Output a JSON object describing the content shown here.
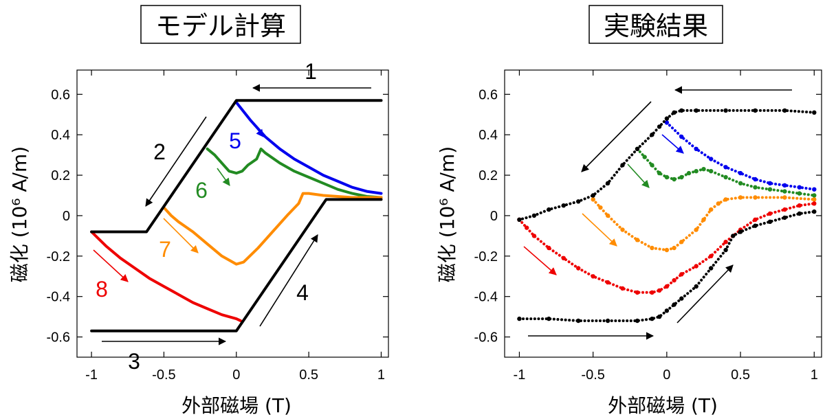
{
  "chart_data": [
    {
      "type": "line",
      "title": "モデル計算",
      "xlabel": "外部磁場 (T)",
      "ylabel": "磁化 (10⁶ A/m)",
      "xlim": [
        -1.1,
        1.05
      ],
      "ylim": [
        -0.7,
        0.72
      ],
      "xticks": [
        -1,
        -0.5,
        0,
        0.5,
        1
      ],
      "xtick_labels": [
        "-1",
        "-0.5",
        "0",
        "0.5",
        "1"
      ],
      "yticks": [
        -0.6,
        -0.4,
        -0.2,
        0,
        0.2,
        0.4,
        0.6
      ],
      "ytick_labels": [
        "-0.6",
        "-0.4",
        "-0.2",
        "0",
        "0.2",
        "0.4",
        "0.6"
      ],
      "series": [
        {
          "color": "#0000ee",
          "values": [
            [
              0.0,
              0.56
            ],
            [
              0.1,
              0.47
            ],
            [
              0.2,
              0.39
            ],
            [
              0.3,
              0.33
            ],
            [
              0.4,
              0.28
            ],
            [
              0.5,
              0.24
            ],
            [
              0.6,
              0.2
            ],
            [
              0.7,
              0.17
            ],
            [
              0.8,
              0.14
            ],
            [
              0.9,
              0.12
            ],
            [
              1.0,
              0.11
            ]
          ]
        },
        {
          "color": "#228b22",
          "values": [
            [
              -0.2,
              0.33
            ],
            [
              -0.15,
              0.3
            ],
            [
              -0.1,
              0.26
            ],
            [
              -0.05,
              0.22
            ],
            [
              0.0,
              0.21
            ],
            [
              0.04,
              0.22
            ],
            [
              0.08,
              0.25
            ],
            [
              0.14,
              0.28
            ],
            [
              0.17,
              0.33
            ],
            [
              0.2,
              0.31
            ],
            [
              0.3,
              0.26
            ],
            [
              0.4,
              0.22
            ],
            [
              0.5,
              0.19
            ],
            [
              0.6,
              0.16
            ],
            [
              0.7,
              0.13
            ],
            [
              0.8,
              0.11
            ],
            [
              0.9,
              0.095
            ],
            [
              1.0,
              0.09
            ]
          ]
        },
        {
          "color": "#ff8c00",
          "values": [
            [
              -0.5,
              0.04
            ],
            [
              -0.45,
              0.0
            ],
            [
              -0.4,
              -0.03
            ],
            [
              -0.3,
              -0.08
            ],
            [
              -0.2,
              -0.14
            ],
            [
              -0.1,
              -0.2
            ],
            [
              0.0,
              -0.24
            ],
            [
              0.05,
              -0.23
            ],
            [
              0.15,
              -0.16
            ],
            [
              0.25,
              -0.08
            ],
            [
              0.35,
              0.0
            ],
            [
              0.43,
              0.06
            ],
            [
              0.46,
              0.11
            ],
            [
              0.5,
              0.11
            ],
            [
              0.6,
              0.1
            ],
            [
              0.8,
              0.09
            ],
            [
              1.0,
              0.09
            ]
          ]
        },
        {
          "color": "#ee0000",
          "values": [
            [
              -1.0,
              -0.08
            ],
            [
              -0.9,
              -0.15
            ],
            [
              -0.8,
              -0.21
            ],
            [
              -0.7,
              -0.26
            ],
            [
              -0.6,
              -0.31
            ],
            [
              -0.5,
              -0.35
            ],
            [
              -0.4,
              -0.39
            ],
            [
              -0.3,
              -0.43
            ],
            [
              -0.2,
              -0.46
            ],
            [
              -0.1,
              -0.49
            ],
            [
              0.0,
              -0.51
            ],
            [
              0.03,
              -0.52
            ]
          ]
        },
        {
          "color": "#000000",
          "values": [
            [
              1.0,
              0.57
            ],
            [
              0.0,
              0.57
            ],
            [
              -0.62,
              -0.08
            ],
            [
              -1.0,
              -0.08
            ]
          ]
        },
        {
          "color": "#000000",
          "values": [
            [
              -1.0,
              -0.57
            ],
            [
              0.0,
              -0.57
            ],
            [
              0.62,
              0.08
            ],
            [
              1.0,
              0.08
            ]
          ]
        }
      ],
      "annotations": [
        {
          "text": "1",
          "color": "#000000"
        },
        {
          "text": "2",
          "color": "#000000"
        },
        {
          "text": "3",
          "color": "#000000"
        },
        {
          "text": "4",
          "color": "#000000"
        },
        {
          "text": "5",
          "color": "#0000ee"
        },
        {
          "text": "6",
          "color": "#228b22"
        },
        {
          "text": "7",
          "color": "#ff8c00"
        },
        {
          "text": "8",
          "color": "#ee0000"
        }
      ]
    },
    {
      "type": "scatter",
      "title": "実験結果",
      "xlabel": "外部磁場 (T)",
      "ylabel": "磁化 (10⁶ A/m)",
      "xlim": [
        -1.1,
        1.05
      ],
      "ylim": [
        -0.7,
        0.72
      ],
      "xticks": [
        -1,
        -0.5,
        0,
        0.5,
        1
      ],
      "xtick_labels": [
        "-1",
        "-0.5",
        "0",
        "0.5",
        "1"
      ],
      "yticks": [
        -0.6,
        -0.4,
        -0.2,
        0,
        0.2,
        0.4,
        0.6
      ],
      "ytick_labels": [
        "-0.6",
        "-0.4",
        "-0.2",
        "0",
        "0.2",
        "0.4",
        "0.6"
      ],
      "series": [
        {
          "color": "#0000ee",
          "values": [
            [
              0.0,
              0.46
            ],
            [
              0.1,
              0.39
            ],
            [
              0.2,
              0.33
            ],
            [
              0.3,
              0.28
            ],
            [
              0.4,
              0.24
            ],
            [
              0.5,
              0.21
            ],
            [
              0.6,
              0.18
            ],
            [
              0.7,
              0.16
            ],
            [
              0.8,
              0.15
            ],
            [
              0.9,
              0.14
            ],
            [
              1.0,
              0.13
            ]
          ]
        },
        {
          "color": "#228b22",
          "values": [
            [
              -0.2,
              0.33
            ],
            [
              -0.15,
              0.29
            ],
            [
              -0.1,
              0.25
            ],
            [
              -0.05,
              0.21
            ],
            [
              0.0,
              0.19
            ],
            [
              0.05,
              0.18
            ],
            [
              0.1,
              0.19
            ],
            [
              0.15,
              0.21
            ],
            [
              0.2,
              0.22
            ],
            [
              0.25,
              0.23
            ],
            [
              0.3,
              0.22
            ],
            [
              0.4,
              0.19
            ],
            [
              0.5,
              0.16
            ],
            [
              0.6,
              0.14
            ],
            [
              0.7,
              0.13
            ],
            [
              0.8,
              0.12
            ],
            [
              0.9,
              0.11
            ],
            [
              1.0,
              0.1
            ]
          ]
        },
        {
          "color": "#ff8c00",
          "values": [
            [
              -0.5,
              0.08
            ],
            [
              -0.45,
              0.04
            ],
            [
              -0.4,
              0.0
            ],
            [
              -0.3,
              -0.07
            ],
            [
              -0.2,
              -0.12
            ],
            [
              -0.1,
              -0.16
            ],
            [
              0.0,
              -0.17
            ],
            [
              0.05,
              -0.16
            ],
            [
              0.1,
              -0.13
            ],
            [
              0.2,
              -0.07
            ],
            [
              0.25,
              -0.02
            ],
            [
              0.3,
              0.03
            ],
            [
              0.35,
              0.06
            ],
            [
              0.4,
              0.08
            ],
            [
              0.5,
              0.09
            ],
            [
              0.6,
              0.09
            ],
            [
              0.8,
              0.09
            ],
            [
              1.0,
              0.08
            ]
          ]
        },
        {
          "color": "#ee0000",
          "values": [
            [
              -1.0,
              -0.02
            ],
            [
              -0.95,
              -0.06
            ],
            [
              -0.9,
              -0.1
            ],
            [
              -0.8,
              -0.16
            ],
            [
              -0.7,
              -0.21
            ],
            [
              -0.6,
              -0.26
            ],
            [
              -0.5,
              -0.3
            ],
            [
              -0.4,
              -0.33
            ],
            [
              -0.3,
              -0.36
            ],
            [
              -0.2,
              -0.38
            ],
            [
              -0.1,
              -0.38
            ],
            [
              -0.05,
              -0.37
            ],
            [
              0.0,
              -0.35
            ],
            [
              0.05,
              -0.32
            ],
            [
              0.1,
              -0.29
            ],
            [
              0.2,
              -0.25
            ],
            [
              0.3,
              -0.2
            ],
            [
              0.4,
              -0.13
            ],
            [
              0.5,
              -0.07
            ],
            [
              0.6,
              -0.02
            ],
            [
              0.7,
              0.01
            ],
            [
              0.8,
              0.03
            ],
            [
              0.9,
              0.05
            ],
            [
              1.0,
              0.06
            ]
          ]
        },
        {
          "color": "#000000",
          "values": [
            [
              1.0,
              0.51
            ],
            [
              0.8,
              0.52
            ],
            [
              0.6,
              0.52
            ],
            [
              0.4,
              0.52
            ],
            [
              0.2,
              0.52
            ],
            [
              0.1,
              0.52
            ],
            [
              0.05,
              0.51
            ],
            [
              0.0,
              0.48
            ],
            [
              -0.05,
              0.44
            ],
            [
              -0.1,
              0.4
            ],
            [
              -0.2,
              0.33
            ],
            [
              -0.3,
              0.25
            ],
            [
              -0.4,
              0.16
            ],
            [
              -0.5,
              0.1
            ],
            [
              -0.6,
              0.07
            ],
            [
              -0.7,
              0.05
            ],
            [
              -0.8,
              0.03
            ],
            [
              -0.9,
              0.0
            ],
            [
              -1.0,
              -0.02
            ]
          ]
        },
        {
          "color": "#000000",
          "values": [
            [
              -1.0,
              -0.51
            ],
            [
              -0.8,
              -0.51
            ],
            [
              -0.6,
              -0.52
            ],
            [
              -0.4,
              -0.52
            ],
            [
              -0.2,
              -0.52
            ],
            [
              -0.1,
              -0.51
            ],
            [
              -0.05,
              -0.5
            ],
            [
              0.0,
              -0.47
            ],
            [
              0.05,
              -0.44
            ],
            [
              0.1,
              -0.41
            ],
            [
              0.2,
              -0.35
            ],
            [
              0.3,
              -0.26
            ],
            [
              0.4,
              -0.17
            ],
            [
              0.45,
              -0.1
            ],
            [
              0.5,
              -0.08
            ],
            [
              0.6,
              -0.05
            ],
            [
              0.7,
              -0.03
            ],
            [
              0.8,
              -0.01
            ],
            [
              0.9,
              0.01
            ],
            [
              1.0,
              0.02
            ]
          ]
        }
      ],
      "annotations": []
    }
  ]
}
